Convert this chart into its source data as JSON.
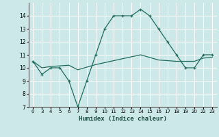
{
  "xlabel": "Humidex (Indice chaleur)",
  "bg_color": "#cce8e8",
  "grid_color": "#ffffff",
  "line_color": "#1e6b5e",
  "ylim": [
    7,
    15
  ],
  "yticks": [
    7,
    8,
    9,
    10,
    11,
    12,
    13,
    14
  ],
  "xlabels": [
    "0",
    "3",
    "4",
    "5",
    "6",
    "7",
    "8",
    "9",
    "10",
    "11",
    "12",
    "13",
    "14",
    "15",
    "16",
    "17",
    "18",
    "19",
    "20",
    "22",
    "23"
  ],
  "series1_y": [
    10.5,
    9.5,
    10.0,
    10.0,
    9.0,
    7.0,
    9.0,
    11.0,
    13.0,
    14.0,
    14.0,
    14.0,
    14.5,
    14.0,
    13.0,
    12.0,
    11.0,
    10.0,
    10.0,
    11.0,
    11.0
  ],
  "series2_y": [
    10.5,
    10.0,
    10.1,
    10.15,
    10.2,
    9.85,
    10.05,
    10.25,
    10.4,
    10.55,
    10.7,
    10.85,
    11.0,
    10.8,
    10.6,
    10.55,
    10.5,
    10.5,
    10.5,
    10.75,
    10.8
  ]
}
